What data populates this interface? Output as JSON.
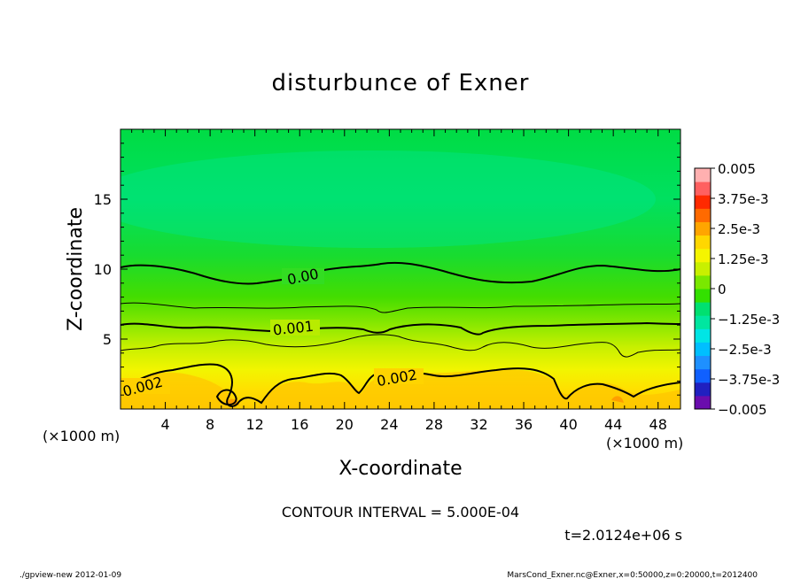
{
  "chart_data": {
    "type": "heatmap",
    "title": "disturbunce of Exner",
    "xlabel": "X-coordinate",
    "ylabel": "Z-coordinate",
    "x_unit": "(×1000 m)",
    "y_unit": "(×1000 m)",
    "xlim": [
      0,
      50
    ],
    "ylim": [
      0,
      20
    ],
    "x_ticks": [
      4,
      8,
      12,
      16,
      20,
      24,
      28,
      32,
      36,
      40,
      44,
      48
    ],
    "y_ticks": [
      5,
      10,
      15
    ],
    "contour_interval_text": "CONTOUR INTERVAL = 5.000E-04",
    "time_text": "t=2.0124e+06 s",
    "contour_labels": [
      {
        "text": "0.00",
        "x": 17.5,
        "z": 9.7
      },
      {
        "text": "0.001",
        "x": 15.5,
        "z": 5.6
      },
      {
        "text": "0.002",
        "x": 2.0,
        "z": 1.8
      },
      {
        "text": "0.002",
        "x": 24.8,
        "z": 2.3
      }
    ],
    "colorbar": {
      "ticks": [
        "0.005",
        "3.75e-3",
        "2.5e-3",
        "1.25e-3",
        "0",
        "−1.25e-3",
        "−2.5e-3",
        "−3.75e-3",
        "−0.005"
      ],
      "levels": [
        -0.005,
        0.005
      ],
      "colors_low_to_high": [
        "#6a0dad",
        "#2020c0",
        "#1060ff",
        "#1e90ff",
        "#00bfff",
        "#00e5e5",
        "#00e6a0",
        "#00e070",
        "#33e000",
        "#7ae800",
        "#c8f000",
        "#f5f500",
        "#ffd700",
        "#ffa500",
        "#ff6a00",
        "#ff2a00",
        "#ff6060",
        "#ffb0b0"
      ]
    }
  },
  "footer": {
    "left": "./gpview-new   2012-01-09",
    "right": "MarsCond_Exner.nc@Exner,x=0:50000,z=0:20000,t=2012400"
  }
}
